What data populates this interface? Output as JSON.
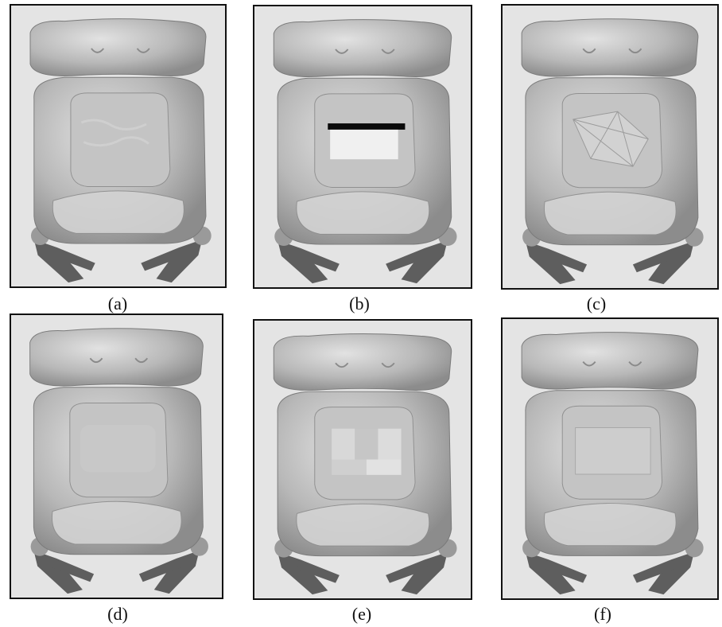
{
  "figure": {
    "panels": [
      {
        "caption": "(a)",
        "variant": "original"
      },
      {
        "caption": "(b)",
        "variant": "hole"
      },
      {
        "caption": "(c)",
        "variant": "fan"
      },
      {
        "caption": "(d)",
        "variant": "smooth"
      },
      {
        "caption": "(e)",
        "variant": "blocky"
      },
      {
        "caption": "(f)",
        "variant": "flat"
      }
    ]
  },
  "colors": {
    "background": "#e4e4e4",
    "surface": "#b8b8b8",
    "border": "#111111",
    "legs": "#5e5e5e",
    "hole": "#0a0a0a"
  }
}
